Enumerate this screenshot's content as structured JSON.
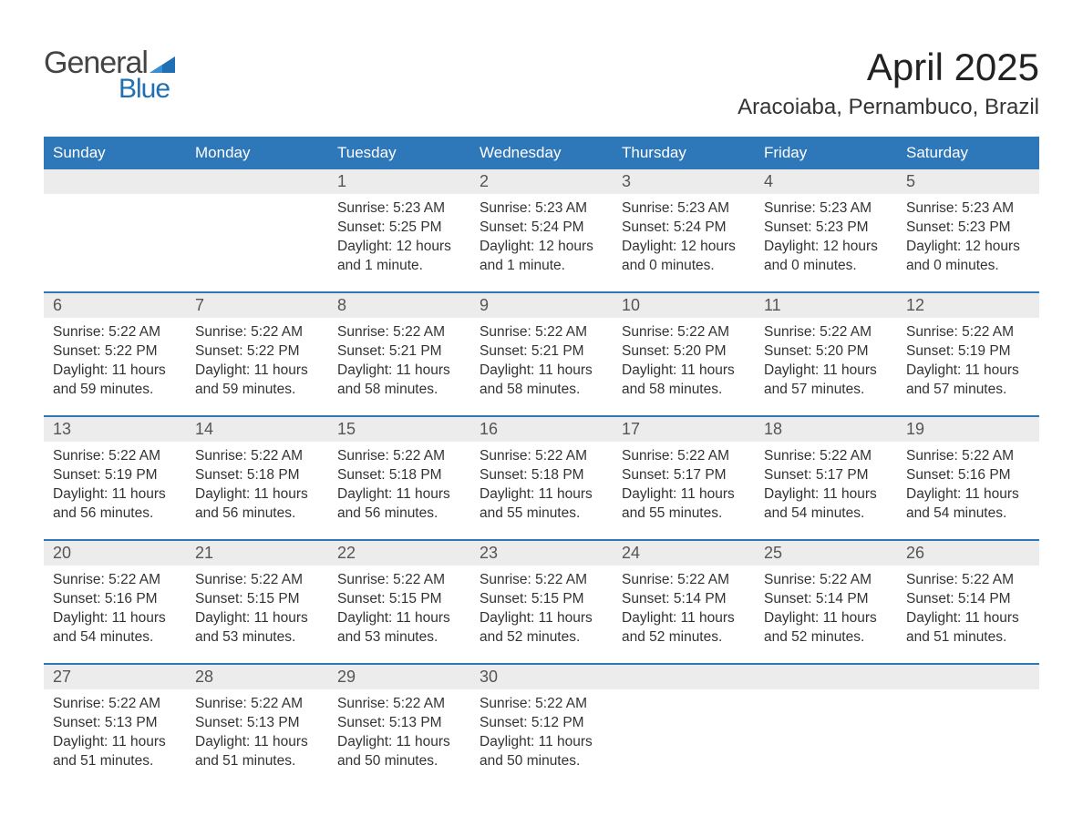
{
  "logo": {
    "text1": "General",
    "text2": "Blue",
    "flag_color": "#1f6fb2"
  },
  "title": "April 2025",
  "location": "Aracoiaba, Pernambuco, Brazil",
  "colors": {
    "header_bg": "#2e77b8",
    "header_text": "#ffffff",
    "daynum_bg": "#ececec",
    "row_border": "#2e77b8",
    "body_text": "#333333",
    "page_bg": "#ffffff"
  },
  "typography": {
    "title_fontsize": 42,
    "location_fontsize": 24,
    "header_fontsize": 17,
    "daynum_fontsize": 18,
    "content_fontsize": 15.5
  },
  "day_headers": [
    "Sunday",
    "Monday",
    "Tuesday",
    "Wednesday",
    "Thursday",
    "Friday",
    "Saturday"
  ],
  "weeks": [
    [
      null,
      null,
      {
        "d": "1",
        "sr": "5:23 AM",
        "ss": "5:25 PM",
        "dl": "12 hours and 1 minute."
      },
      {
        "d": "2",
        "sr": "5:23 AM",
        "ss": "5:24 PM",
        "dl": "12 hours and 1 minute."
      },
      {
        "d": "3",
        "sr": "5:23 AM",
        "ss": "5:24 PM",
        "dl": "12 hours and 0 minutes."
      },
      {
        "d": "4",
        "sr": "5:23 AM",
        "ss": "5:23 PM",
        "dl": "12 hours and 0 minutes."
      },
      {
        "d": "5",
        "sr": "5:23 AM",
        "ss": "5:23 PM",
        "dl": "12 hours and 0 minutes."
      }
    ],
    [
      {
        "d": "6",
        "sr": "5:22 AM",
        "ss": "5:22 PM",
        "dl": "11 hours and 59 minutes."
      },
      {
        "d": "7",
        "sr": "5:22 AM",
        "ss": "5:22 PM",
        "dl": "11 hours and 59 minutes."
      },
      {
        "d": "8",
        "sr": "5:22 AM",
        "ss": "5:21 PM",
        "dl": "11 hours and 58 minutes."
      },
      {
        "d": "9",
        "sr": "5:22 AM",
        "ss": "5:21 PM",
        "dl": "11 hours and 58 minutes."
      },
      {
        "d": "10",
        "sr": "5:22 AM",
        "ss": "5:20 PM",
        "dl": "11 hours and 58 minutes."
      },
      {
        "d": "11",
        "sr": "5:22 AM",
        "ss": "5:20 PM",
        "dl": "11 hours and 57 minutes."
      },
      {
        "d": "12",
        "sr": "5:22 AM",
        "ss": "5:19 PM",
        "dl": "11 hours and 57 minutes."
      }
    ],
    [
      {
        "d": "13",
        "sr": "5:22 AM",
        "ss": "5:19 PM",
        "dl": "11 hours and 56 minutes."
      },
      {
        "d": "14",
        "sr": "5:22 AM",
        "ss": "5:18 PM",
        "dl": "11 hours and 56 minutes."
      },
      {
        "d": "15",
        "sr": "5:22 AM",
        "ss": "5:18 PM",
        "dl": "11 hours and 56 minutes."
      },
      {
        "d": "16",
        "sr": "5:22 AM",
        "ss": "5:18 PM",
        "dl": "11 hours and 55 minutes."
      },
      {
        "d": "17",
        "sr": "5:22 AM",
        "ss": "5:17 PM",
        "dl": "11 hours and 55 minutes."
      },
      {
        "d": "18",
        "sr": "5:22 AM",
        "ss": "5:17 PM",
        "dl": "11 hours and 54 minutes."
      },
      {
        "d": "19",
        "sr": "5:22 AM",
        "ss": "5:16 PM",
        "dl": "11 hours and 54 minutes."
      }
    ],
    [
      {
        "d": "20",
        "sr": "5:22 AM",
        "ss": "5:16 PM",
        "dl": "11 hours and 54 minutes."
      },
      {
        "d": "21",
        "sr": "5:22 AM",
        "ss": "5:15 PM",
        "dl": "11 hours and 53 minutes."
      },
      {
        "d": "22",
        "sr": "5:22 AM",
        "ss": "5:15 PM",
        "dl": "11 hours and 53 minutes."
      },
      {
        "d": "23",
        "sr": "5:22 AM",
        "ss": "5:15 PM",
        "dl": "11 hours and 52 minutes."
      },
      {
        "d": "24",
        "sr": "5:22 AM",
        "ss": "5:14 PM",
        "dl": "11 hours and 52 minutes."
      },
      {
        "d": "25",
        "sr": "5:22 AM",
        "ss": "5:14 PM",
        "dl": "11 hours and 52 minutes."
      },
      {
        "d": "26",
        "sr": "5:22 AM",
        "ss": "5:14 PM",
        "dl": "11 hours and 51 minutes."
      }
    ],
    [
      {
        "d": "27",
        "sr": "5:22 AM",
        "ss": "5:13 PM",
        "dl": "11 hours and 51 minutes."
      },
      {
        "d": "28",
        "sr": "5:22 AM",
        "ss": "5:13 PM",
        "dl": "11 hours and 51 minutes."
      },
      {
        "d": "29",
        "sr": "5:22 AM",
        "ss": "5:13 PM",
        "dl": "11 hours and 50 minutes."
      },
      {
        "d": "30",
        "sr": "5:22 AM",
        "ss": "5:12 PM",
        "dl": "11 hours and 50 minutes."
      },
      null,
      null,
      null
    ]
  ],
  "labels": {
    "sunrise": "Sunrise:",
    "sunset": "Sunset:",
    "daylight": "Daylight:"
  }
}
